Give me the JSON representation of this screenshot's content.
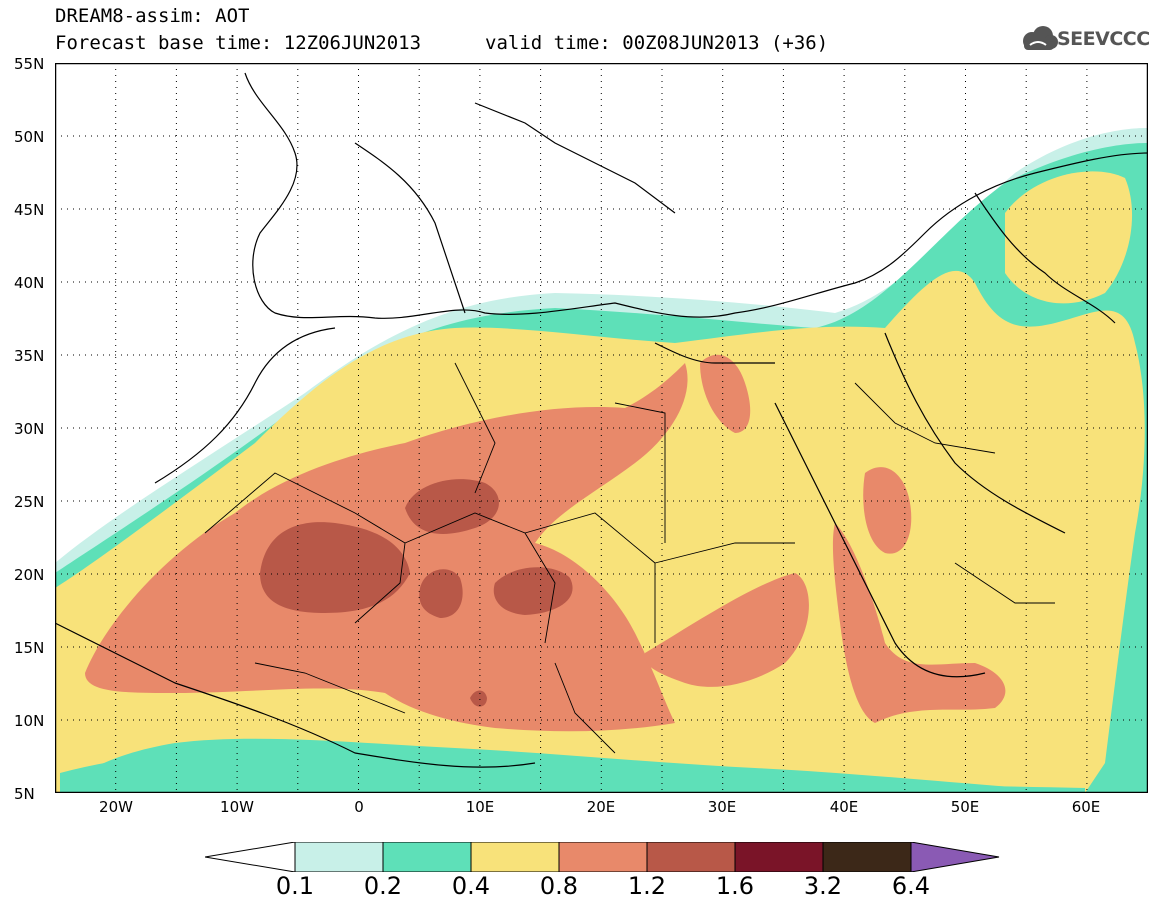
{
  "header": {
    "title_line1": "DREAM8-assim: AOT",
    "base_time": "Forecast base time: 12Z06JUN2013",
    "valid_time": "valid time: 00Z08JUN2013 (+36)",
    "logo_text": "SEEVCCC"
  },
  "axes": {
    "y_labels": [
      "55N",
      "50N",
      "45N",
      "40N",
      "35N",
      "30N",
      "25N",
      "20N",
      "15N",
      "10N",
      "5N"
    ],
    "x_labels": [
      "20W",
      "10W",
      "0",
      "10E",
      "20E",
      "30E",
      "40E",
      "50E",
      "60E"
    ]
  },
  "colorbar": {
    "labels": [
      "0.1",
      "0.2",
      "0.4",
      "0.8",
      "1.2",
      "1.6",
      "3.2",
      "6.4"
    ],
    "colors": [
      "#ffffff",
      "#c8f0e8",
      "#5ee0b8",
      "#f8e27a",
      "#e8896a",
      "#b85848",
      "#7a1428",
      "#3c2818",
      "#8a5ab4"
    ]
  }
}
